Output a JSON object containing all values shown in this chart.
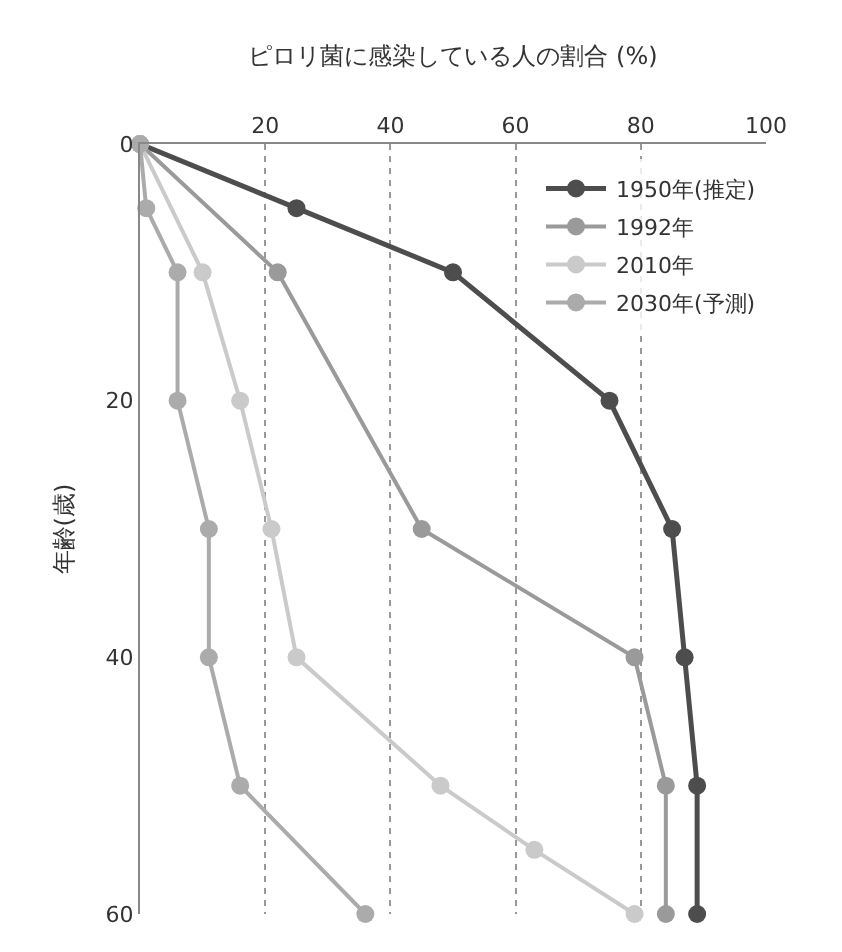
{
  "chart_data": {
    "type": "line",
    "xlabel": "ピロリ菌に感染している人の割合 (%)",
    "ylabel": "年齢(歳)",
    "xlim": [
      0,
      100
    ],
    "xticks": [
      {
        "value": 0,
        "label": null
      },
      20,
      40,
      60,
      80,
      100
    ],
    "ylim": [
      60,
      0
    ],
    "yticks": [
      0,
      20,
      40,
      60
    ],
    "grid": "x",
    "legend": "top right",
    "marker": "circle",
    "line_style": "solid",
    "series": [
      {
        "name": "1950年(推定)",
        "color": "#4d4d4d",
        "x": [
          0,
          25,
          50,
          75,
          85,
          87,
          89,
          89
        ],
        "values": [
          0,
          5,
          10,
          20,
          30,
          40,
          50,
          60
        ]
      },
      {
        "name": "1992年",
        "color": "#9a9a9a",
        "x": [
          0,
          22,
          45,
          79,
          84,
          84
        ],
        "values": [
          0,
          10,
          30,
          40,
          50,
          60
        ]
      },
      {
        "name": "2010年",
        "color": "#cacaca",
        "x": [
          0,
          10,
          16,
          21,
          25,
          48,
          63,
          79
        ],
        "values": [
          0,
          10,
          20,
          30,
          40,
          50,
          55,
          60
        ]
      },
      {
        "name": "2030年(予測)",
        "color": "#ababab",
        "x": [
          0,
          1,
          6,
          6,
          11,
          11,
          16,
          36
        ],
        "values": [
          0,
          5,
          10,
          20,
          30,
          40,
          50,
          60
        ]
      }
    ]
  }
}
